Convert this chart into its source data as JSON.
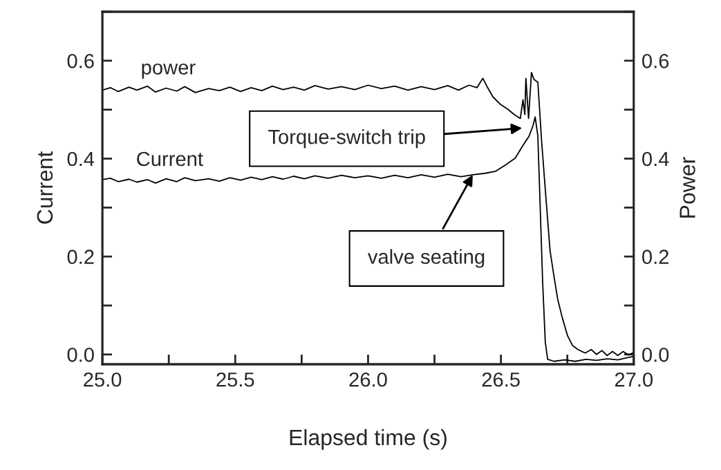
{
  "chart_data": {
    "type": "line",
    "xlabel": "Elapsed time (s)",
    "ylabel": "Current",
    "y2label": "Power",
    "xlim": [
      25.0,
      27.0
    ],
    "xticks": [
      {
        "value": 25,
        "label": "25.0"
      },
      {
        "value": 25.25,
        "label": null
      },
      25.5,
      {
        "value": 25.75,
        "label": null
      },
      {
        "value": 26,
        "label": "26.0"
      },
      {
        "value": 26.25,
        "label": null
      },
      26.5,
      {
        "value": 26.75,
        "label": null
      },
      {
        "value": 27,
        "label": "27.0"
      }
    ],
    "ylim": [
      -0.02,
      0.7
    ],
    "yticks": [
      {
        "value": 0,
        "label": "0.0"
      },
      {
        "value": 0.1,
        "label": null
      },
      0.2,
      {
        "value": 0.3,
        "label": null
      },
      0.4,
      {
        "value": 0.5,
        "label": null
      },
      0.6,
      {
        "value": 0.7,
        "label": null
      }
    ],
    "y2lim": [
      -0.02,
      0.7
    ],
    "y2ticks": [
      {
        "value": 0,
        "label": "0.0"
      },
      {
        "value": 0.1,
        "label": null
      },
      0.2,
      {
        "value": 0.3,
        "label": null
      },
      0.4,
      {
        "value": 0.5,
        "label": null
      },
      0.6,
      {
        "value": 0.7,
        "label": null
      }
    ],
    "grid": false,
    "legend": false,
    "marker": "none",
    "line_style": "solid",
    "series": [
      {
        "name": "power",
        "color": "#000000",
        "axis": "y2",
        "x": [
          25.0,
          25.03,
          25.06,
          25.1,
          25.13,
          25.17,
          25.2,
          25.24,
          25.28,
          25.31,
          25.35,
          25.4,
          25.44,
          25.48,
          25.52,
          25.56,
          25.6,
          25.64,
          25.68,
          25.72,
          25.76,
          25.8,
          25.85,
          25.9,
          25.95,
          26.0,
          26.05,
          26.1,
          26.15,
          26.2,
          26.25,
          26.3,
          26.34,
          26.38,
          26.41,
          26.432,
          26.45,
          26.47,
          26.5,
          26.526,
          26.55,
          26.573,
          26.583,
          26.59,
          26.594,
          26.604,
          26.615,
          26.624,
          26.639,
          26.653,
          26.667,
          26.685,
          26.699,
          26.714,
          26.732,
          26.751,
          26.77,
          26.79,
          26.817,
          26.84,
          26.86,
          26.88,
          26.9,
          26.92,
          26.94,
          26.96,
          26.98,
          27.0
        ],
        "values": [
          0.54,
          0.545,
          0.537,
          0.546,
          0.54,
          0.548,
          0.536,
          0.544,
          0.538,
          0.547,
          0.535,
          0.543,
          0.539,
          0.546,
          0.537,
          0.545,
          0.539,
          0.548,
          0.541,
          0.546,
          0.54,
          0.549,
          0.542,
          0.547,
          0.541,
          0.55,
          0.543,
          0.548,
          0.54,
          0.547,
          0.541,
          0.549,
          0.54,
          0.55,
          0.545,
          0.564,
          0.545,
          0.526,
          0.51,
          0.501,
          0.49,
          0.482,
          0.52,
          0.49,
          0.564,
          0.482,
          0.576,
          0.562,
          0.556,
          0.437,
          0.337,
          0.212,
          0.162,
          0.112,
          0.073,
          0.038,
          0.018,
          0.01,
          0.003,
          0.01,
          0.0,
          0.008,
          -0.002,
          0.006,
          -0.002,
          0.006,
          -0.001,
          0.004
        ]
      },
      {
        "name": "Current",
        "color": "#000000",
        "x": [
          25.0,
          25.03,
          25.06,
          25.1,
          25.13,
          25.17,
          25.2,
          25.24,
          25.28,
          25.31,
          25.35,
          25.4,
          25.44,
          25.48,
          25.52,
          25.56,
          25.6,
          25.64,
          25.68,
          25.72,
          25.76,
          25.8,
          25.85,
          25.9,
          25.95,
          26.0,
          26.05,
          26.1,
          26.15,
          26.2,
          26.25,
          26.3,
          26.35,
          26.394,
          26.44,
          26.479,
          26.517,
          26.554,
          26.582,
          26.606,
          26.62,
          26.629,
          26.639,
          26.648,
          26.657,
          26.667,
          26.676,
          26.7,
          26.74,
          26.78,
          26.82,
          26.86,
          26.9,
          26.94,
          26.98,
          27.0
        ],
        "values": [
          0.357,
          0.36,
          0.353,
          0.358,
          0.352,
          0.357,
          0.35,
          0.359,
          0.353,
          0.361,
          0.355,
          0.359,
          0.354,
          0.361,
          0.356,
          0.362,
          0.357,
          0.363,
          0.358,
          0.364,
          0.359,
          0.365,
          0.36,
          0.366,
          0.361,
          0.365,
          0.36,
          0.366,
          0.361,
          0.367,
          0.362,
          0.368,
          0.363,
          0.367,
          0.37,
          0.374,
          0.387,
          0.401,
          0.426,
          0.446,
          0.466,
          0.485,
          0.446,
          0.298,
          0.149,
          0.025,
          -0.01,
          -0.014,
          -0.011,
          -0.014,
          -0.01,
          -0.012,
          -0.009,
          -0.011,
          -0.006,
          -0.004
        ]
      }
    ],
    "annotations": [
      "Torque-switch trip",
      {
        "text": "valve seating",
        "x": 26.394,
        "y": 0.367
      }
    ]
  }
}
